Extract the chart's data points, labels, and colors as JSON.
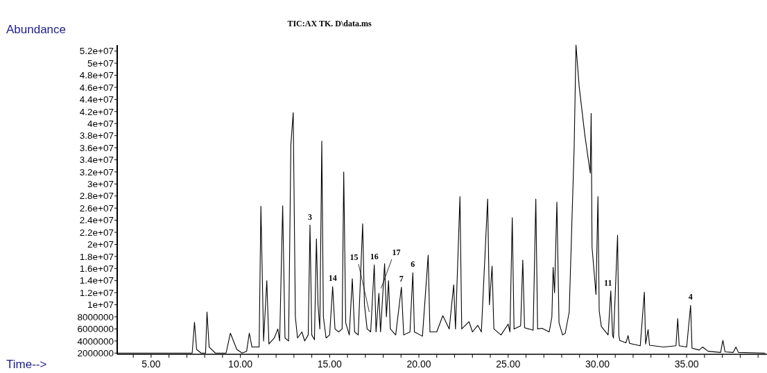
{
  "chart_data": {
    "type": "line",
    "title": "TIC:AX TK. D\\data.ms",
    "xlabel": "Time-->",
    "ylabel": "Abundance",
    "x": [
      3.1,
      7.3,
      7.43,
      7.55,
      7.8,
      8.05,
      8.13,
      8.25,
      8.6,
      9.2,
      9.44,
      9.8,
      10.1,
      10.35,
      10.5,
      10.65,
      11.05,
      11.15,
      11.3,
      11.48,
      11.6,
      11.9,
      12.1,
      12.2,
      12.37,
      12.5,
      12.7,
      12.83,
      12.96,
      13.08,
      13.2,
      13.45,
      13.6,
      13.8,
      13.9,
      14.0,
      14.15,
      14.26,
      14.35,
      14.45,
      14.52,
      14.56,
      14.65,
      14.8,
      15.0,
      15.17,
      15.3,
      15.5,
      15.7,
      15.79,
      15.9,
      16.1,
      16.27,
      16.4,
      16.6,
      16.85,
      16.95,
      17.1,
      17.3,
      17.5,
      17.6,
      17.76,
      17.85,
      18.08,
      18.18,
      18.3,
      18.4,
      18.7,
      19.02,
      19.15,
      19.5,
      19.66,
      19.75,
      20.2,
      20.52,
      20.62,
      21.0,
      21.34,
      21.7,
      21.95,
      22.05,
      22.3,
      22.4,
      22.81,
      23.0,
      23.3,
      23.5,
      23.85,
      23.95,
      24.1,
      24.2,
      24.6,
      25.0,
      25.1,
      25.23,
      25.33,
      25.7,
      25.82,
      25.92,
      26.4,
      26.55,
      26.65,
      26.9,
      27.3,
      27.45,
      27.52,
      27.6,
      27.73,
      27.85,
      28.05,
      28.2,
      28.42,
      28.7,
      28.8,
      28.98,
      29.3,
      29.6,
      29.65,
      29.7,
      29.92,
      30.03,
      30.1,
      30.22,
      30.6,
      30.75,
      30.85,
      30.9,
      31.13,
      31.2,
      31.25,
      31.6,
      31.72,
      31.8,
      32.4,
      32.63,
      32.7,
      32.84,
      32.92,
      33.7,
      34.4,
      34.5,
      34.58,
      35.0,
      35.22,
      35.3,
      35.7,
      35.89,
      36.2,
      36.9,
      37.03,
      37.15,
      37.6,
      37.76,
      37.9,
      39.4
    ],
    "series": [
      {
        "color": "#000000",
        "values": [
          2000000,
          2000000,
          7100000,
          2600000,
          2000000,
          2000000,
          8800000,
          3000000,
          2000000,
          2000000,
          5300000,
          2600000,
          2000000,
          2300000,
          5300000,
          3000000,
          3000000,
          26300000,
          4000000,
          14000000,
          3500000,
          4500000,
          6000000,
          4000000,
          26400000,
          4500000,
          4000000,
          36600000,
          41800000,
          8000000,
          4500000,
          5500000,
          4000000,
          5000000,
          23200000,
          5000000,
          4200000,
          20900000,
          10000000,
          6000000,
          25300000,
          37100000,
          8000000,
          4500000,
          5000000,
          13000000,
          6000000,
          5500000,
          6000000,
          32000000,
          7000000,
          5000000,
          14300000,
          5500000,
          5000000,
          23400000,
          10000000,
          6000000,
          5500000,
          16600000,
          5500000,
          11900000,
          5500000,
          16800000,
          8000000,
          14000000,
          6000000,
          5000000,
          12900000,
          5000000,
          5500000,
          15300000,
          5500000,
          4800000,
          18200000,
          5500000,
          5500000,
          8200000,
          6000000,
          13300000,
          6000000,
          27900000,
          6000000,
          7200000,
          5500000,
          6600000,
          5500000,
          27500000,
          10000000,
          16400000,
          6000000,
          5000000,
          6800000,
          5500000,
          24400000,
          6000000,
          6500000,
          17400000,
          6200000,
          5800000,
          27500000,
          6000000,
          6100000,
          5500000,
          8000000,
          16200000,
          12000000,
          27000000,
          7000000,
          5000000,
          5300000,
          8800000,
          36300000,
          53000000,
          46100000,
          38000000,
          31800000,
          41700000,
          19500000,
          11700000,
          27900000,
          9000000,
          6400000,
          5000000,
          12300000,
          5000000,
          4500000,
          21500000,
          5000000,
          4100000,
          3700000,
          4900000,
          3600000,
          3200000,
          12100000,
          3500000,
          5900000,
          3300000,
          3000000,
          3200000,
          7700000,
          3200000,
          3000000,
          9900000,
          2800000,
          2500000,
          3000000,
          2300000,
          2100000,
          4100000,
          2200000,
          2100000,
          3000000,
          2100000,
          2000000
        ]
      }
    ],
    "xlim": [
      3.1,
      39.5
    ],
    "xticks": [
      {
        "value": 4,
        "label": null
      },
      {
        "value": 5,
        "label": "5.00"
      },
      {
        "value": 6,
        "label": null
      },
      {
        "value": 7,
        "label": null
      },
      {
        "value": 8,
        "label": null
      },
      {
        "value": 9,
        "label": null
      },
      {
        "value": 10,
        "label": "10.00"
      },
      {
        "value": 11,
        "label": null
      },
      {
        "value": 12,
        "label": null
      },
      {
        "value": 13,
        "label": null
      },
      {
        "value": 14,
        "label": null
      },
      {
        "value": 15,
        "label": "15.00"
      },
      {
        "value": 16,
        "label": null
      },
      {
        "value": 17,
        "label": null
      },
      {
        "value": 18,
        "label": null
      },
      {
        "value": 19,
        "label": null
      },
      {
        "value": 20,
        "label": "20.00"
      },
      {
        "value": 21,
        "label": null
      },
      {
        "value": 22,
        "label": null
      },
      {
        "value": 23,
        "label": null
      },
      {
        "value": 24,
        "label": null
      },
      {
        "value": 25,
        "label": "25.00"
      },
      {
        "value": 26,
        "label": null
      },
      {
        "value": 27,
        "label": null
      },
      {
        "value": 28,
        "label": null
      },
      {
        "value": 29,
        "label": null
      },
      {
        "value": 30,
        "label": "30.00"
      },
      {
        "value": 31,
        "label": null
      },
      {
        "value": 32,
        "label": null
      },
      {
        "value": 33,
        "label": null
      },
      {
        "value": 34,
        "label": null
      },
      {
        "value": 35,
        "label": "35.00"
      },
      {
        "value": 36,
        "label": null
      },
      {
        "value": 37,
        "label": null
      },
      {
        "value": 38,
        "label": null
      },
      {
        "value": 39,
        "label": null
      }
    ],
    "ylim": [
      1800000,
      53000000
    ],
    "yticks": [
      2000000,
      4000000,
      6000000,
      8000000,
      {
        "value": 10000000,
        "label": "1e+07"
      },
      {
        "value": 12000000,
        "label": "1.2e+07"
      },
      {
        "value": 14000000,
        "label": "1.4e+07"
      },
      {
        "value": 16000000,
        "label": "1.6e+07"
      },
      {
        "value": 18000000,
        "label": "1.8e+07"
      },
      {
        "value": 20000000,
        "label": "2e+07"
      },
      {
        "value": 22000000,
        "label": "2.2e+07"
      },
      {
        "value": 24000000,
        "label": "2.4e+07"
      },
      {
        "value": 26000000,
        "label": "2.6e+07"
      },
      {
        "value": 28000000,
        "label": "2.8e+07"
      },
      {
        "value": 30000000,
        "label": "3e+07"
      },
      {
        "value": 32000000,
        "label": "3.2e+07"
      },
      {
        "value": 34000000,
        "label": "3.4e+07"
      },
      {
        "value": 36000000,
        "label": "3.6e+07"
      },
      {
        "value": 38000000,
        "label": "3.8e+07"
      },
      {
        "value": 40000000,
        "label": "4e+07"
      },
      {
        "value": 42000000,
        "label": "4.2e+07"
      },
      {
        "value": 44000000,
        "label": "4.4e+07"
      },
      {
        "value": 46000000,
        "label": "4.6e+07"
      },
      {
        "value": 48000000,
        "label": "4.8e+07"
      },
      {
        "value": 50000000,
        "label": "5e+07"
      },
      {
        "value": 52000000,
        "label": "5.2e+07"
      }
    ],
    "annotations": [
      {
        "text": "3",
        "x": 13.9,
        "y": 23200000
      },
      {
        "text": "14",
        "x": 15.17,
        "y": 13000000
      },
      {
        "text": "15",
        "x": 17.22,
        "y": 8800000
      },
      {
        "text": "16",
        "x": 17.5,
        "y": 16600000
      },
      {
        "text": "17",
        "x": 17.88,
        "y": 12700000
      },
      {
        "text": "7",
        "x": 19.02,
        "y": 12900000
      },
      {
        "text": "6",
        "x": 19.66,
        "y": 15300000
      },
      {
        "text": "11",
        "x": 30.75,
        "y": 12300000
      },
      {
        "text": "4",
        "x": 35.22,
        "y": 9900000
      }
    ],
    "marker": "none",
    "line_style": "solid"
  }
}
